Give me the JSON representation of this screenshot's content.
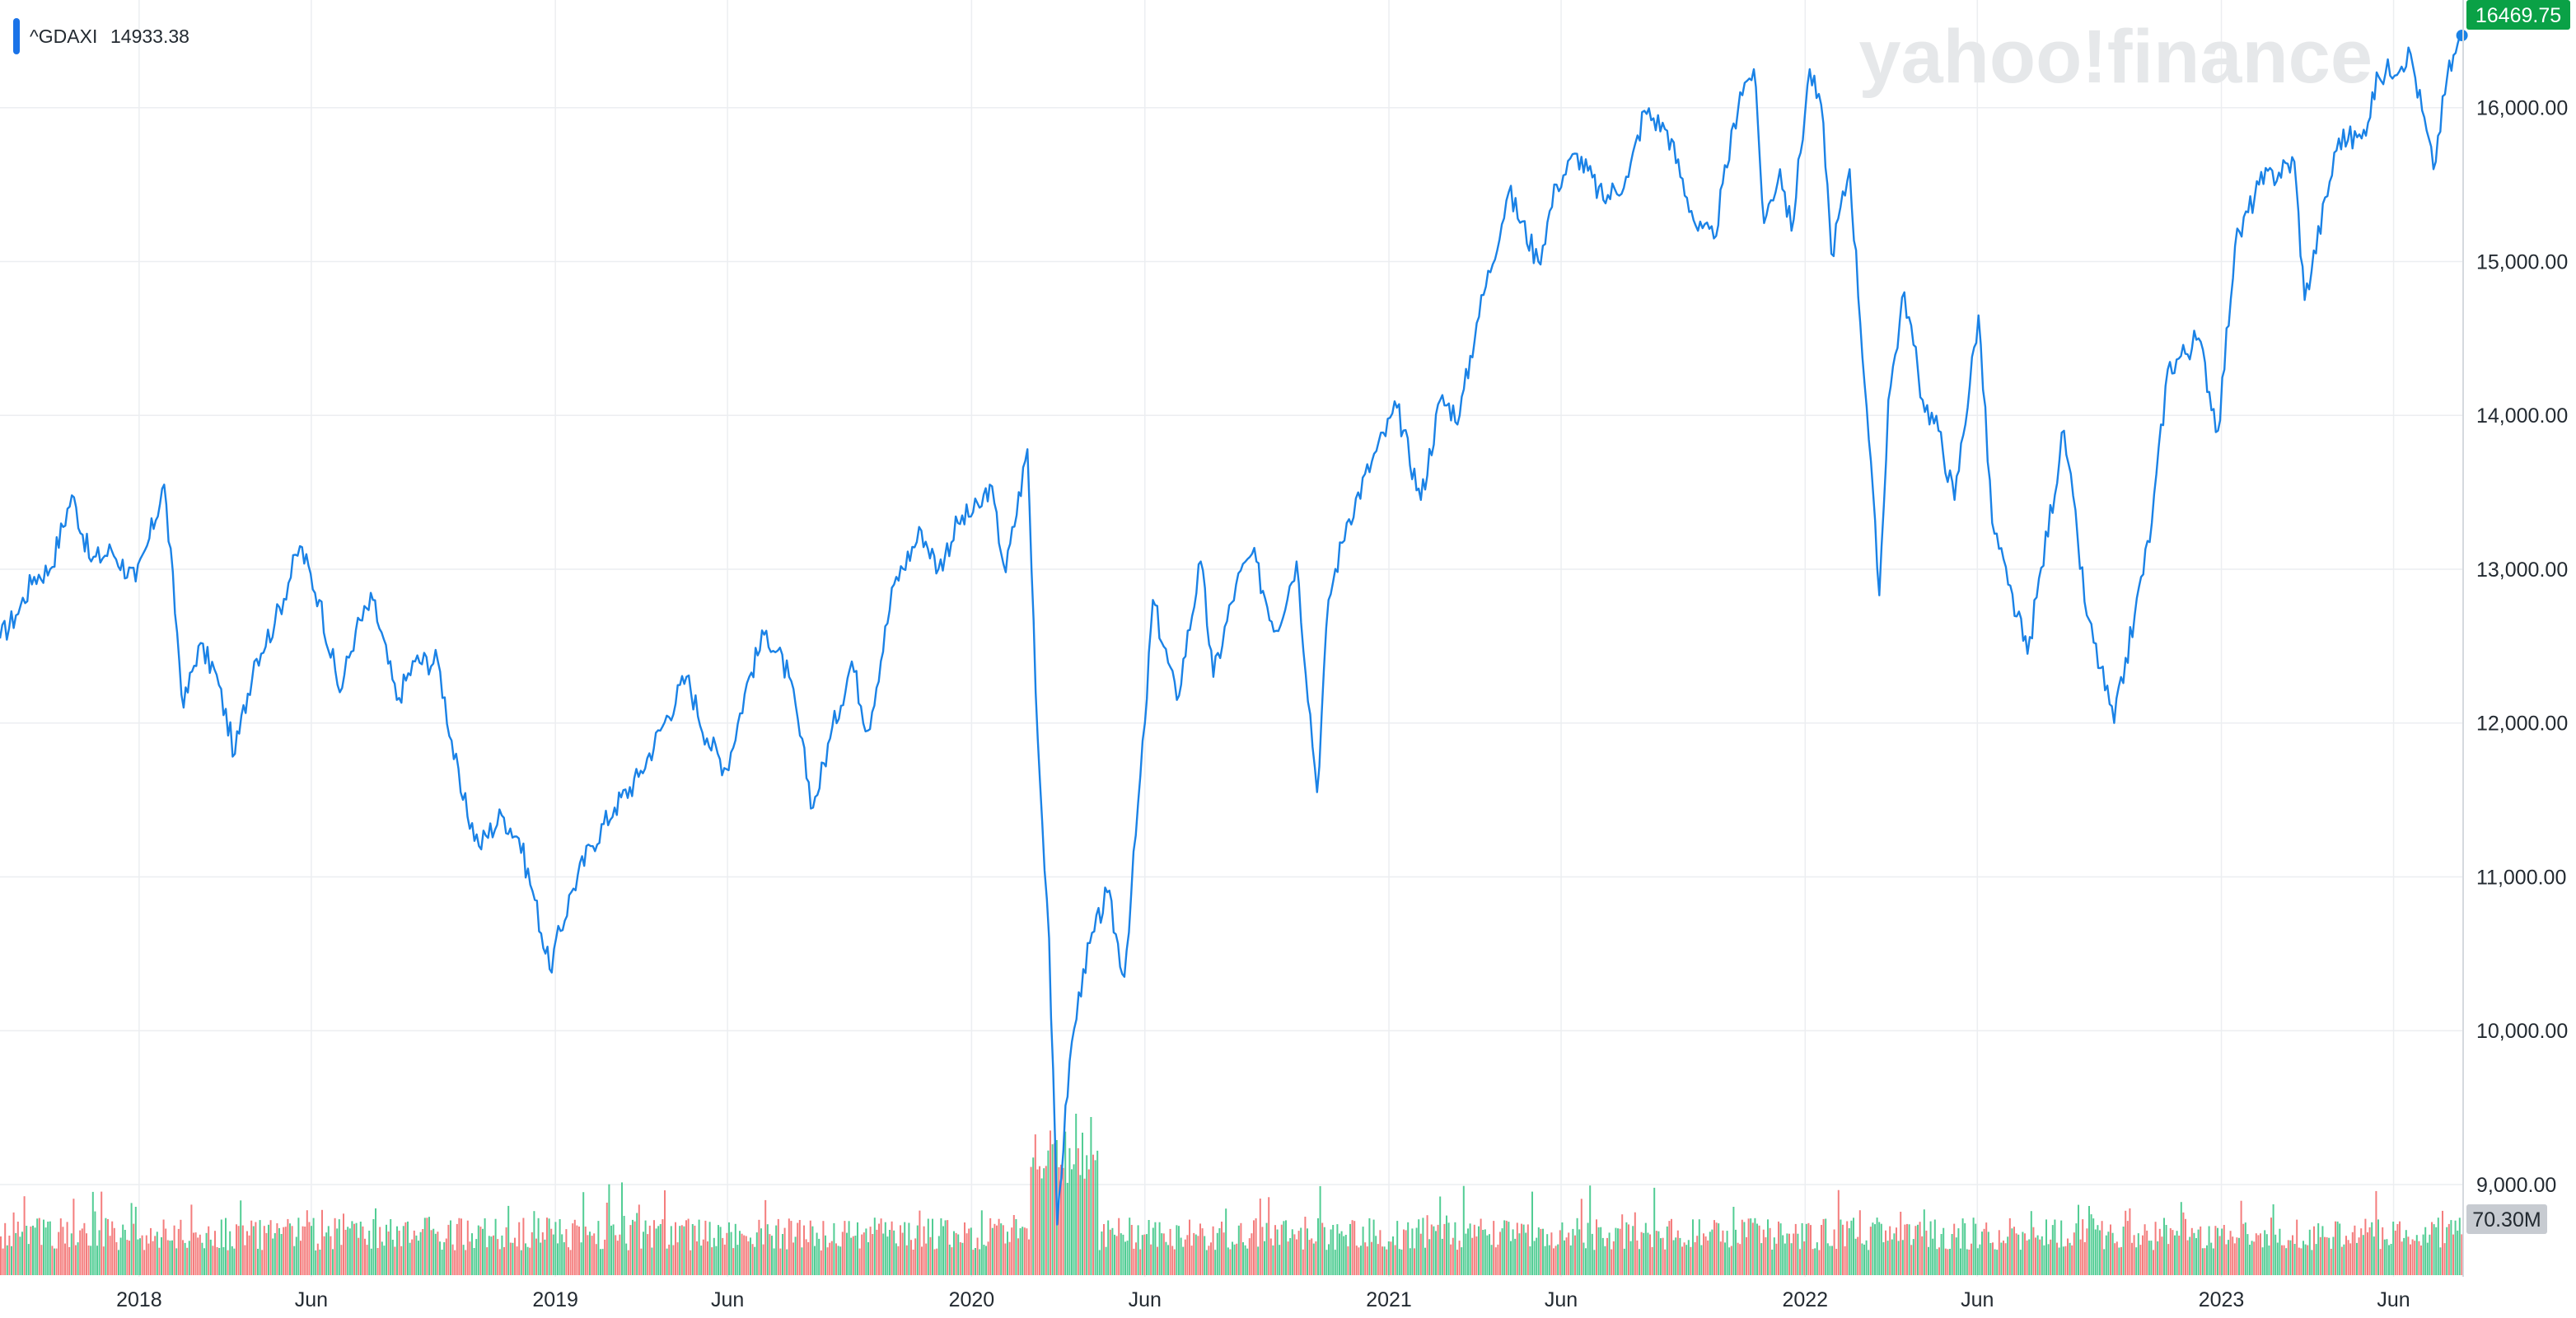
{
  "legend": {
    "symbol": "^GDAXI",
    "value": "14933.38",
    "color": "#1a73e8"
  },
  "watermark": "yahoo!finance",
  "last_price_badge": {
    "text": "16469.75",
    "color": "#0aa146"
  },
  "volume_badge": {
    "text": "70.30M",
    "color": "#c7cbd1"
  },
  "colors": {
    "line": "#1a82e6",
    "volume_up": "#3fc888",
    "volume_down": "#f36f6f",
    "grid": "#eceef1",
    "axis_text": "#232a31"
  },
  "chart_data": {
    "type": "line",
    "title": "",
    "xlabel": "",
    "ylabel": "",
    "x_range": [
      "2017-09-01",
      "2023-08-01"
    ],
    "ylim": [
      8400,
      16700
    ],
    "y_ticks": [
      "9,000.00",
      "10,000.00",
      "11,000.00",
      "12,000.00",
      "13,000.00",
      "14,000.00",
      "15,000.00",
      "16,000.00"
    ],
    "x_ticks": [
      {
        "label": "2018",
        "date": "2018-01-01"
      },
      {
        "label": "Jun",
        "date": "2018-06-01"
      },
      {
        "label": "2019",
        "date": "2019-01-01"
      },
      {
        "label": "Jun",
        "date": "2019-06-01"
      },
      {
        "label": "2020",
        "date": "2020-01-01"
      },
      {
        "label": "Jun",
        "date": "2020-06-01"
      },
      {
        "label": "2021",
        "date": "2021-01-01"
      },
      {
        "label": "Jun",
        "date": "2021-06-01"
      },
      {
        "label": "2022",
        "date": "2022-01-01"
      },
      {
        "label": "Jun",
        "date": "2022-06-01"
      },
      {
        "label": "2023",
        "date": "2023-01-01"
      },
      {
        "label": "Jun",
        "date": "2023-06-01"
      }
    ],
    "grid": true,
    "series": [
      {
        "name": "^GDAXI",
        "points": [
          [
            "2017-09-01",
            12550
          ],
          [
            "2017-09-15",
            12700
          ],
          [
            "2017-10-01",
            12950
          ],
          [
            "2017-10-15",
            13000
          ],
          [
            "2017-11-03",
            13480
          ],
          [
            "2017-11-20",
            13050
          ],
          [
            "2017-12-08",
            13120
          ],
          [
            "2017-12-29",
            12920
          ],
          [
            "2018-01-10",
            13200
          ],
          [
            "2018-01-23",
            13550
          ],
          [
            "2018-02-09",
            12100
          ],
          [
            "2018-02-22",
            12500
          ],
          [
            "2018-03-08",
            12350
          ],
          [
            "2018-03-26",
            11800
          ],
          [
            "2018-04-12",
            12400
          ],
          [
            "2018-04-30",
            12650
          ],
          [
            "2018-05-22",
            13150
          ],
          [
            "2018-06-08",
            12800
          ],
          [
            "2018-06-26",
            12200
          ],
          [
            "2018-07-10",
            12600
          ],
          [
            "2018-07-25",
            12800
          ],
          [
            "2018-08-15",
            12150
          ],
          [
            "2018-08-31",
            12400
          ],
          [
            "2018-09-20",
            12400
          ],
          [
            "2018-10-10",
            11550
          ],
          [
            "2018-10-26",
            11200
          ],
          [
            "2018-11-15",
            11400
          ],
          [
            "2018-11-30",
            11250
          ],
          [
            "2018-12-14",
            10850
          ],
          [
            "2018-12-27",
            10400
          ],
          [
            "2019-01-15",
            10900
          ],
          [
            "2019-02-01",
            11200
          ],
          [
            "2019-02-22",
            11450
          ],
          [
            "2019-03-15",
            11650
          ],
          [
            "2019-04-03",
            11950
          ],
          [
            "2019-04-26",
            12300
          ],
          [
            "2019-05-14",
            11900
          ],
          [
            "2019-05-31",
            11700
          ],
          [
            "2019-06-20",
            12300
          ],
          [
            "2019-07-05",
            12600
          ],
          [
            "2019-07-25",
            12300
          ],
          [
            "2019-08-15",
            11450
          ],
          [
            "2019-08-30",
            11900
          ],
          [
            "2019-09-18",
            12400
          ],
          [
            "2019-10-02",
            11950
          ],
          [
            "2019-10-25",
            12900
          ],
          [
            "2019-11-18",
            13250
          ],
          [
            "2019-12-03",
            13000
          ],
          [
            "2019-12-20",
            13300
          ],
          [
            "2020-01-08",
            13400
          ],
          [
            "2020-01-17",
            13550
          ],
          [
            "2020-01-31",
            12980
          ],
          [
            "2020-02-19",
            13780
          ],
          [
            "2020-02-28",
            11900
          ],
          [
            "2020-03-09",
            10600
          ],
          [
            "2020-03-16",
            8740
          ],
          [
            "2020-03-27",
            9800
          ],
          [
            "2020-04-08",
            10400
          ],
          [
            "2020-04-29",
            10900
          ],
          [
            "2020-05-14",
            10350
          ],
          [
            "2020-06-01",
            12000
          ],
          [
            "2020-06-08",
            12800
          ],
          [
            "2020-06-29",
            12150
          ],
          [
            "2020-07-20",
            13050
          ],
          [
            "2020-07-31",
            12300
          ],
          [
            "2020-08-20",
            12900
          ],
          [
            "2020-09-03",
            13100
          ],
          [
            "2020-09-24",
            12600
          ],
          [
            "2020-10-12",
            13050
          ],
          [
            "2020-10-30",
            11550
          ],
          [
            "2020-11-09",
            12800
          ],
          [
            "2020-11-25",
            13300
          ],
          [
            "2020-12-17",
            13700
          ],
          [
            "2021-01-08",
            14050
          ],
          [
            "2021-01-29",
            13450
          ],
          [
            "2021-02-15",
            14100
          ],
          [
            "2021-03-04",
            14000
          ],
          [
            "2021-03-19",
            14600
          ],
          [
            "2021-04-16",
            15450
          ],
          [
            "2021-05-12",
            15000
          ],
          [
            "2021-05-28",
            15500
          ],
          [
            "2021-06-15",
            15700
          ],
          [
            "2021-07-08",
            15400
          ],
          [
            "2021-07-30",
            15550
          ],
          [
            "2021-08-13",
            15980
          ],
          [
            "2021-09-02",
            15850
          ],
          [
            "2021-09-29",
            15200
          ],
          [
            "2021-10-13",
            15150
          ],
          [
            "2021-11-05",
            16100
          ],
          [
            "2021-11-17",
            16250
          ],
          [
            "2021-11-26",
            15250
          ],
          [
            "2021-12-10",
            15600
          ],
          [
            "2021-12-20",
            15200
          ],
          [
            "2022-01-05",
            16250
          ],
          [
            "2022-01-17",
            15900
          ],
          [
            "2022-01-24",
            15050
          ],
          [
            "2022-02-09",
            15600
          ],
          [
            "2022-02-24",
            14050
          ],
          [
            "2022-03-07",
            12830
          ],
          [
            "2022-03-15",
            14100
          ],
          [
            "2022-03-29",
            14800
          ],
          [
            "2022-04-14",
            14100
          ],
          [
            "2022-04-28",
            13900
          ],
          [
            "2022-05-12",
            13450
          ],
          [
            "2022-06-02",
            14650
          ],
          [
            "2022-06-14",
            13300
          ],
          [
            "2022-06-28",
            12900
          ],
          [
            "2022-07-15",
            12450
          ],
          [
            "2022-08-16",
            13900
          ],
          [
            "2022-09-05",
            12700
          ],
          [
            "2022-09-29",
            12000
          ],
          [
            "2022-10-17",
            12700
          ],
          [
            "2022-11-01",
            13300
          ],
          [
            "2022-11-15",
            14300
          ],
          [
            "2022-12-12",
            14500
          ],
          [
            "2022-12-29",
            13900
          ],
          [
            "2023-01-13",
            15100
          ],
          [
            "2023-02-03",
            15500
          ],
          [
            "2023-03-06",
            15650
          ],
          [
            "2023-03-15",
            14750
          ],
          [
            "2023-04-14",
            15800
          ],
          [
            "2023-05-04",
            15800
          ],
          [
            "2023-05-19",
            16200
          ],
          [
            "2023-06-16",
            16350
          ],
          [
            "2023-07-06",
            15600
          ],
          [
            "2023-07-18",
            16200
          ],
          [
            "2023-07-31",
            16469.75
          ]
        ]
      }
    ]
  }
}
